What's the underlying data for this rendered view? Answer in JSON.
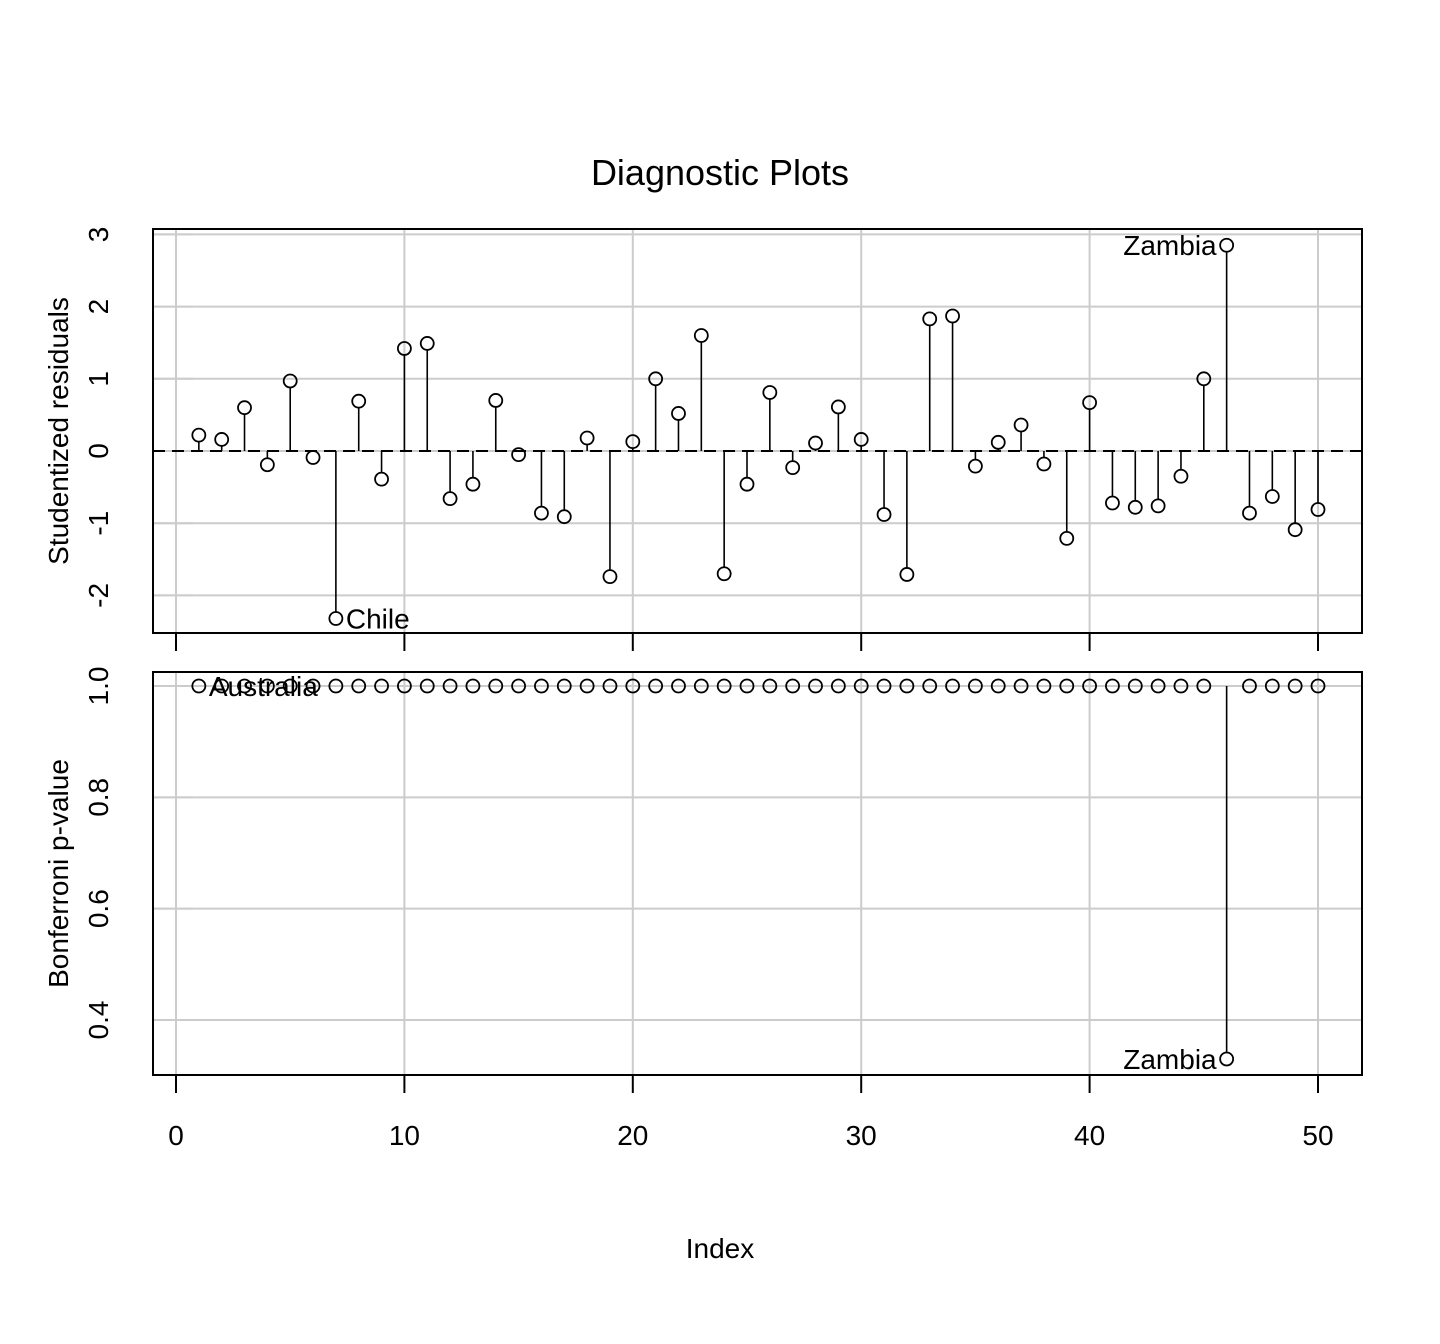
{
  "chart_data": {
    "type": "stem",
    "title": "Diagnostic Plots",
    "xlabel": "Index",
    "x_ticks": [
      "0",
      "10",
      "20",
      "30",
      "40",
      "50"
    ],
    "x": [
      1,
      2,
      3,
      4,
      5,
      6,
      7,
      8,
      9,
      10,
      11,
      12,
      13,
      14,
      15,
      16,
      17,
      18,
      19,
      20,
      21,
      22,
      23,
      24,
      25,
      26,
      27,
      28,
      29,
      30,
      31,
      32,
      33,
      34,
      35,
      36,
      37,
      38,
      39,
      40,
      41,
      42,
      43,
      44,
      45,
      46,
      47,
      48,
      49,
      50
    ],
    "panels": [
      {
        "ylabel": "Studentized residuals",
        "y_ticks": [
          "-2",
          "-1",
          "0",
          "1",
          "2",
          "3"
        ],
        "ylim": [
          -2.55,
          3.05
        ],
        "reference_line": 0,
        "values": [
          0.22,
          0.16,
          0.6,
          -0.19,
          0.97,
          -0.09,
          -2.32,
          0.69,
          -0.39,
          1.42,
          1.49,
          -0.66,
          -0.46,
          0.7,
          -0.05,
          -0.86,
          -0.91,
          0.18,
          -1.74,
          0.13,
          1.0,
          0.52,
          1.6,
          -1.7,
          -0.46,
          0.81,
          -0.23,
          0.11,
          0.61,
          0.16,
          -0.88,
          -1.71,
          1.83,
          1.87,
          -0.21,
          0.12,
          0.36,
          -0.18,
          -1.21,
          0.67,
          -0.72,
          -0.78,
          -0.76,
          -0.35,
          1.0,
          2.85,
          -0.86,
          -0.63,
          -1.09,
          -0.81
        ],
        "labels": [
          {
            "index": 7,
            "text": "Chile",
            "side": "right"
          },
          {
            "index": 46,
            "text": "Zambia",
            "side": "left"
          }
        ]
      },
      {
        "ylabel": "Bonferroni p-value",
        "y_ticks": [
          "0.4",
          "0.6",
          "0.8",
          "1.0"
        ],
        "ylim": [
          0.31,
          1.045
        ],
        "reference_line": 1,
        "values": [
          1,
          1,
          1,
          1,
          1,
          1,
          1,
          1,
          1,
          1,
          1,
          1,
          1,
          1,
          1,
          1,
          1,
          1,
          1,
          1,
          1,
          1,
          1,
          1,
          1,
          1,
          1,
          1,
          1,
          1,
          1,
          1,
          1,
          1,
          1,
          1,
          1,
          1,
          1,
          1,
          1,
          1,
          1,
          1,
          1,
          0.33,
          1,
          1,
          1,
          1
        ],
        "labels": [
          {
            "index": 1,
            "text": "Australia",
            "side": "right"
          },
          {
            "index": 46,
            "text": "Zambia",
            "side": "left"
          }
        ]
      }
    ]
  }
}
